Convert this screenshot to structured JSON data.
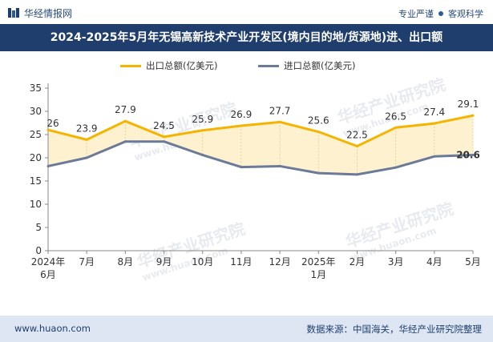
{
  "header": {
    "logo_text": "华经情报网",
    "tagline_left": "专业严谨",
    "tagline_right": "客观科学"
  },
  "title": "2024-2025年5月年无锡高新技术产业开发区(境内目的地/货源地)进、出口额",
  "footer": {
    "website": "www.huaon.com",
    "source": "数据来源：中国海关，华经产业研究院整理"
  },
  "watermark": {
    "text": "华经产业研究院",
    "url": "www.huaon.com"
  },
  "colors": {
    "export": "#f5b400",
    "import": "#6b7a98",
    "fill": "#fdf1cf",
    "grid": "#e6e6e6",
    "title_bg": "#1f3e6d"
  },
  "chart_data": {
    "type": "line",
    "categories": [
      "2024年\n6月",
      "7月",
      "8月",
      "9月",
      "10月",
      "11月",
      "12月",
      "2025年\n1月",
      "2月",
      "3月",
      "4月",
      "5月"
    ],
    "series": [
      {
        "name": "出口总额(亿美元)",
        "values": [
          26,
          23.9,
          27.9,
          24.5,
          25.9,
          26.9,
          27.7,
          25.6,
          22.5,
          26.5,
          27.4,
          29.1
        ]
      },
      {
        "name": "进口总额(亿美元)",
        "values": [
          18.2,
          20.0,
          23.5,
          23.5,
          20.6,
          18.0,
          18.2,
          16.7,
          16.4,
          17.9,
          20.3,
          20.6
        ]
      }
    ],
    "ylim": [
      0,
      35
    ],
    "yticks": [
      0,
      5,
      10,
      15,
      20,
      25,
      30,
      35
    ],
    "labels": {
      "export": [
        "26",
        "23.9",
        "27.9",
        "24.5",
        "25.9",
        "26.9",
        "27.7",
        "25.6",
        "22.5",
        "26.5",
        "27.4",
        "29.1"
      ],
      "import_last": "20.6"
    },
    "legend_position": "top-center",
    "grid": false
  }
}
